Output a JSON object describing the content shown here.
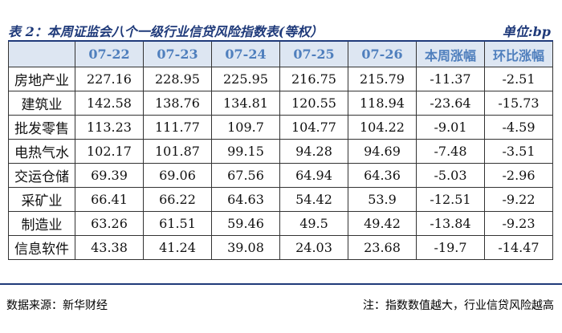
{
  "header": {
    "title": "表 2：本周证监会八个一级行业信贷风险指数表(等权）",
    "unit": "单位:bp"
  },
  "table": {
    "columns": [
      "07-22",
      "07-23",
      "07-24",
      "07-25",
      "07-26",
      "本周涨幅",
      "环比涨幅"
    ],
    "rows": [
      [
        "房地产业",
        227.16,
        228.95,
        225.95,
        216.75,
        215.79,
        -11.37,
        -2.51
      ],
      [
        "建筑业",
        142.58,
        138.76,
        134.81,
        120.55,
        118.94,
        -23.64,
        -15.73
      ],
      [
        "批发零售",
        113.23,
        111.77,
        109.7,
        104.77,
        104.22,
        -9.01,
        -4.59
      ],
      [
        "电热气水",
        102.17,
        101.87,
        99.15,
        94.28,
        94.69,
        -7.48,
        -3.51
      ],
      [
        "交运仓储",
        69.39,
        69.06,
        67.56,
        64.94,
        64.36,
        -5.03,
        -2.96
      ],
      [
        "采矿业",
        66.41,
        66.22,
        64.63,
        54.42,
        53.9,
        -12.51,
        -9.22
      ],
      [
        "制造业",
        63.26,
        61.51,
        59.46,
        49.5,
        49.42,
        -13.84,
        -9.23
      ],
      [
        "信息软件",
        43.38,
        41.24,
        39.08,
        24.03,
        23.68,
        -19.7,
        -14.47
      ]
    ]
  },
  "footer": {
    "source": "数据来源：新华财经",
    "note": "注：指数数值越大，行业信贷风险越高"
  }
}
